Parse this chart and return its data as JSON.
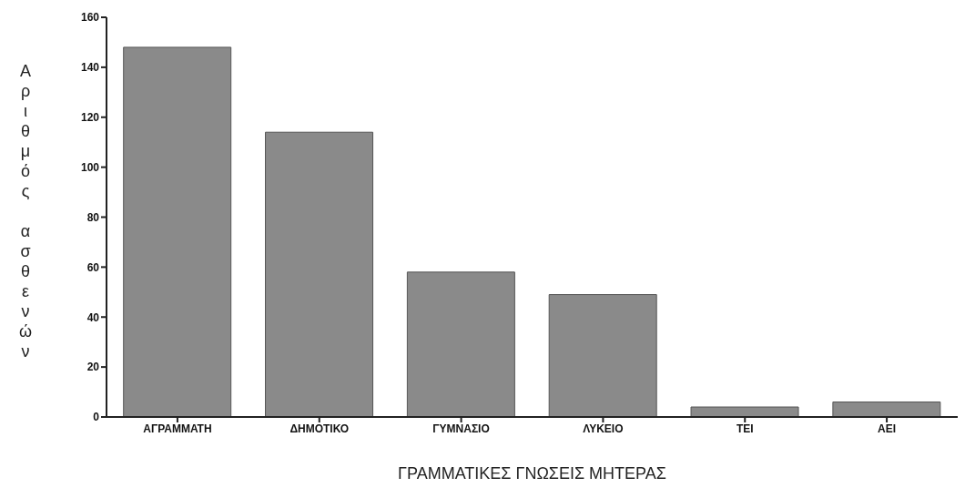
{
  "chart_data": {
    "type": "bar",
    "xlabel": "ΓΡΑΜΜΑΤΙΚΕΣ ΓΝΩΣΕΙΣ ΜΗΤΕΡΑΣ",
    "ylabel": "Αριθμός ασθενών",
    "categories": [
      "ΑΓΡΑΜΜΑΤΗ",
      "ΔΗΜΟΤΙΚΟ",
      "ΓΥΜΝΑΣΙΟ",
      "ΛΥΚΕΙΟ",
      "ΤΕΙ",
      "ΑΕΙ"
    ],
    "values": [
      148,
      114,
      58,
      49,
      4,
      6
    ],
    "color": "#8a8a8a",
    "ylim": [
      0,
      160
    ],
    "yticks": [
      0,
      20,
      40,
      60,
      80,
      100,
      120,
      140,
      160
    ],
    "grid": false,
    "legend": false
  }
}
